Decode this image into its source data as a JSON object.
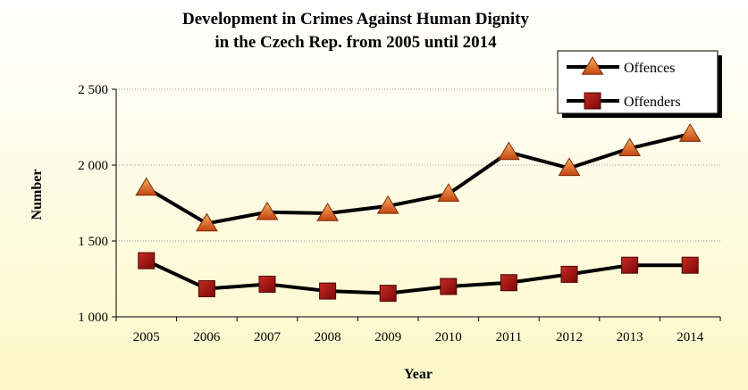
{
  "chart_data": {
    "type": "line",
    "title_line1": "Development in Crimes Against Human Dignity",
    "title_line2": "in the Czech Rep. from 2005 until 2014",
    "xlabel": "Year",
    "ylabel": "Number",
    "categories": [
      "2005",
      "2006",
      "2007",
      "2008",
      "2009",
      "2010",
      "2011",
      "2012",
      "2013",
      "2014"
    ],
    "yticks": [
      1000,
      1500,
      2000,
      2500
    ],
    "ytick_labels": [
      "1 000",
      "1 500",
      "2 000",
      "2 500"
    ],
    "ylim": [
      1000,
      2500
    ],
    "grid": "horizontal",
    "legend_position": "top-right",
    "series": [
      {
        "name": "Offences",
        "marker": "triangle",
        "line_color": "#000000",
        "marker_color": "#e0601a",
        "values": [
          1850,
          1615,
          1690,
          1682,
          1730,
          1810,
          2085,
          1980,
          2110,
          2205
        ]
      },
      {
        "name": "Offenders",
        "marker": "square",
        "line_color": "#000000",
        "marker_color": "#a81010",
        "values": [
          1370,
          1185,
          1215,
          1170,
          1155,
          1200,
          1225,
          1280,
          1340,
          1340
        ]
      }
    ],
    "background_gradient": [
      "#ffffff",
      "#fdf8c8"
    ]
  }
}
